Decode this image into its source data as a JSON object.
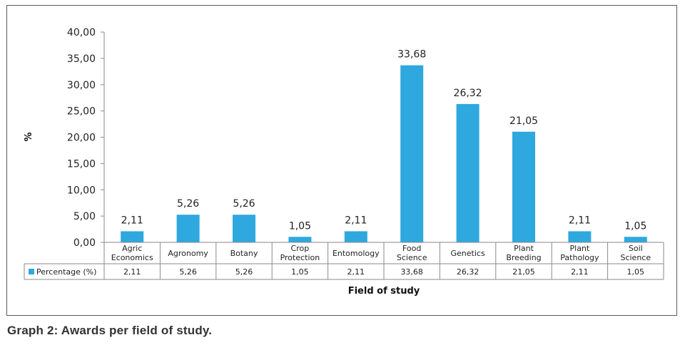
{
  "caption": "Graph 2: Awards per field of study.",
  "chart_data": {
    "type": "bar",
    "categories": [
      [
        "Agric",
        "Economics"
      ],
      [
        "Agronomy"
      ],
      [
        "Botany"
      ],
      [
        "Crop",
        "Protection"
      ],
      [
        "Entomology"
      ],
      [
        "Food",
        "Science"
      ],
      [
        "Genetics"
      ],
      [
        "Plant",
        "Breeding"
      ],
      [
        "Plant",
        "Pathology"
      ],
      [
        "Soil",
        "Science"
      ]
    ],
    "series": [
      {
        "name": "Percentage (%)",
        "color": "#2EA8DF",
        "values": [
          2.11,
          5.26,
          5.26,
          1.05,
          2.11,
          33.68,
          26.32,
          21.05,
          2.11,
          1.05
        ]
      }
    ],
    "data_labels": [
      "2,11",
      "5,26",
      "5,26",
      "1,05",
      "2,11",
      "33,68",
      "26,32",
      "21,05",
      "2,11",
      "1,05"
    ],
    "y_ticks": [
      "0,00",
      "5,00",
      "10,00",
      "15,00",
      "20,00",
      "25,00",
      "30,00",
      "35,00",
      "40,00"
    ],
    "ylim": [
      0,
      40
    ],
    "ylabel": "%",
    "xlabel": "Field of study",
    "grid": false,
    "data_table": true
  }
}
